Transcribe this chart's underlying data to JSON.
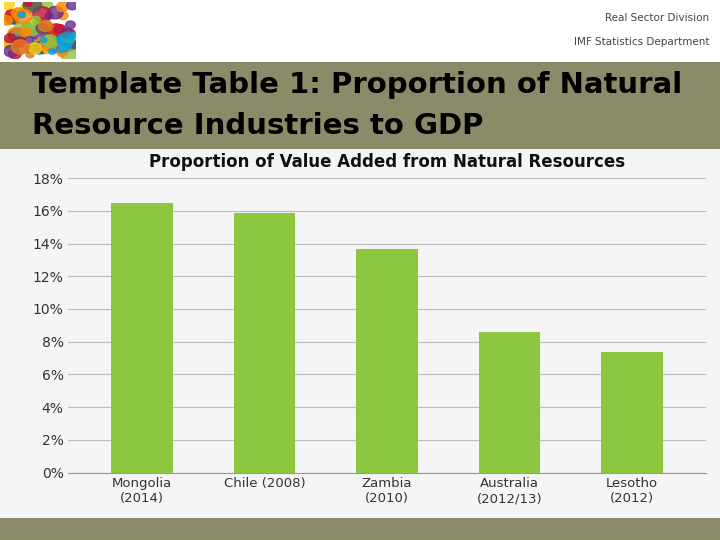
{
  "title_line1": "Template Table 1: Proportion of Natural",
  "title_line2": "Resource Industries to GDP",
  "chart_title": "Proportion of Value Added from Natural Resources",
  "header_line1": "Real Sector Division",
  "header_line2": "IMF Statistics Department",
  "categories": [
    "Mongolia\n(2014)",
    "Chile (2008)",
    "Zambia\n(2010)",
    "Australia\n(2012/13)",
    "Lesotho\n(2012)"
  ],
  "values": [
    16.5,
    15.9,
    13.7,
    8.6,
    7.4
  ],
  "bar_color": "#8DC63F",
  "ylim": [
    0,
    18
  ],
  "yticks": [
    0,
    2,
    4,
    6,
    8,
    10,
    12,
    14,
    16,
    18
  ],
  "ytick_labels": [
    "0%",
    "2%",
    "4%",
    "6%",
    "8%",
    "10%",
    "12%",
    "14%",
    "16%",
    "18%"
  ],
  "title_bg_color": "#8B8B6A",
  "chart_bg_color": "#F5F5F5",
  "header_bg_color": "#FFFFFF",
  "footer_bg_color": "#8B8B6A",
  "grid_color": "#BBBBBB",
  "title_fontsize": 21,
  "chart_title_fontsize": 12,
  "tick_fontsize": 10,
  "header_fontsize": 7.5
}
